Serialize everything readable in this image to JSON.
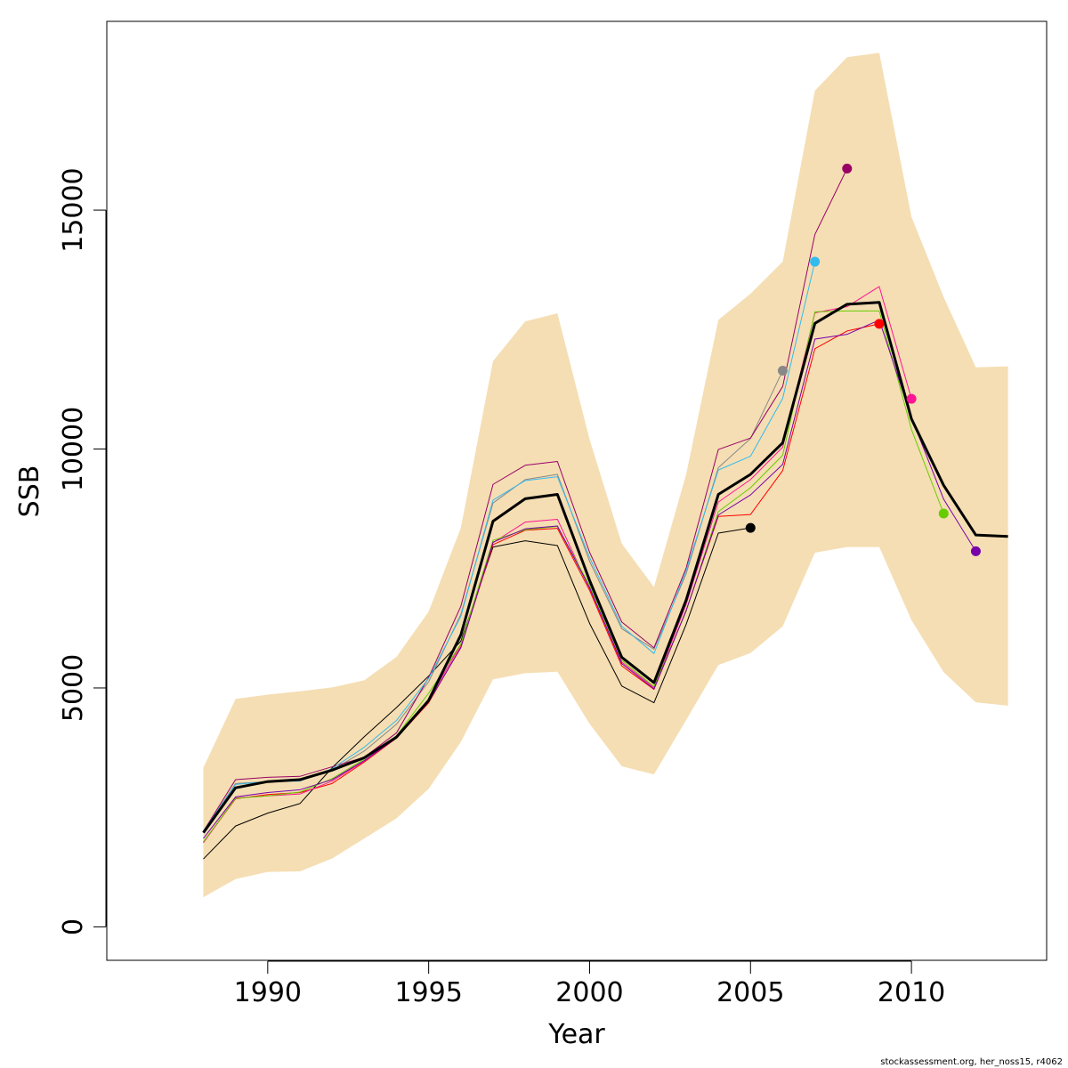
{
  "chart_data": {
    "type": "line",
    "xlabel": "Year",
    "ylabel": "SSB",
    "xlim": [
      1985,
      2014.2
    ],
    "ylim": [
      -700,
      18950
    ],
    "x_ticks": [
      1990,
      1995,
      2000,
      2005,
      2010
    ],
    "x_tick_labels": [
      "1990",
      "1995",
      "2000",
      "2005",
      "2010"
    ],
    "y_ticks": [
      0,
      5000,
      10000,
      15000
    ],
    "y_tick_labels": [
      "0",
      "5000",
      "10000",
      "15000"
    ],
    "grid": false,
    "confidence_band": {
      "color": "#F5DEB3",
      "x": [
        1988,
        1989,
        1990,
        1991,
        1992,
        1993,
        1994,
        1995,
        1996,
        1997,
        1998,
        1999,
        2000,
        2001,
        2002,
        2003,
        2004,
        2005,
        2006,
        2007,
        2008,
        2009,
        2010,
        2011,
        2012,
        2013
      ],
      "lower": [
        620,
        1000,
        1150,
        1160,
        1430,
        1850,
        2270,
        2890,
        3870,
        5180,
        5310,
        5340,
        4250,
        3360,
        3190,
        4330,
        5480,
        5730,
        6290,
        7830,
        7950,
        7950,
        6420,
        5330,
        4700,
        4630
      ],
      "upper": [
        3330,
        4770,
        4860,
        4930,
        5010,
        5160,
        5650,
        6600,
        8350,
        11840,
        12670,
        12840,
        10200,
        8020,
        7110,
        9470,
        12700,
        13250,
        13920,
        17500,
        18200,
        18290,
        14860,
        13180,
        11710,
        11730
      ]
    },
    "series": [
      {
        "color": "#000000",
        "width": 3,
        "x": [
          1988,
          1989,
          1990,
          1991,
          1992,
          1993,
          1994,
          1995,
          1996,
          1997,
          1998,
          1999,
          2000,
          2001,
          2002,
          2003,
          2004,
          2005,
          2006,
          2007,
          2008,
          2009,
          2010,
          2011,
          2012,
          2013
        ],
        "values": [
          1970,
          2910,
          3040,
          3080,
          3280,
          3540,
          3970,
          4740,
          6110,
          8490,
          8960,
          9050,
          7250,
          5640,
          5110,
          6840,
          9050,
          9470,
          10130,
          12630,
          13030,
          13070,
          10630,
          9240,
          8200,
          8170
        ]
      },
      {
        "color": "#000000",
        "width": 1,
        "end_point": true,
        "x": [
          1988,
          1989,
          1990,
          1991,
          1992,
          1993,
          1994,
          1995,
          1996,
          1997,
          1998,
          1999,
          2000,
          2001,
          2002,
          2003,
          2004,
          2005
        ],
        "values": [
          1420,
          2110,
          2380,
          2580,
          3330,
          3980,
          4590,
          5250,
          5980,
          7950,
          8080,
          7980,
          6350,
          5040,
          4690,
          6330,
          8240,
          8350
        ]
      },
      {
        "color": "#888888",
        "width": 1,
        "end_point": true,
        "x": [
          1988,
          1989,
          1990,
          1991,
          1992,
          1993,
          1994,
          1995,
          1996,
          1997,
          1998,
          1999,
          2000,
          2001,
          2002,
          2003,
          2004,
          2005,
          2006
        ],
        "values": [
          1990,
          3000,
          3040,
          3060,
          3280,
          3680,
          4240,
          5130,
          6540,
          8870,
          9360,
          9470,
          7650,
          6240,
          5810,
          7390,
          9610,
          10220,
          11640
        ]
      },
      {
        "color": "#990066",
        "width": 1,
        "end_point": true,
        "x": [
          1988,
          1989,
          1990,
          1991,
          1992,
          1993,
          1994,
          1995,
          1996,
          1997,
          1998,
          1999,
          2000,
          2001,
          2002,
          2003,
          2004,
          2005,
          2006,
          2007,
          2008
        ],
        "values": [
          2000,
          3080,
          3130,
          3150,
          3350,
          3550,
          4060,
          5220,
          6710,
          9260,
          9660,
          9740,
          7840,
          6380,
          5840,
          7510,
          9990,
          10230,
          11310,
          14490,
          15870
        ]
      },
      {
        "color": "#33BBEE",
        "width": 1,
        "end_point": true,
        "x": [
          1988,
          1989,
          1990,
          1991,
          1992,
          1993,
          1994,
          1995,
          1996,
          1997,
          1998,
          1999,
          2000,
          2001,
          2002,
          2003,
          2004,
          2005,
          2006,
          2007
        ],
        "values": [
          2000,
          2980,
          3040,
          3050,
          3310,
          3760,
          4320,
          5200,
          6500,
          8930,
          9340,
          9420,
          7730,
          6290,
          5720,
          7460,
          9560,
          9850,
          11060,
          13920
        ]
      },
      {
        "color": "#FF0000",
        "width": 1,
        "end_point": true,
        "x": [
          1988,
          1989,
          1990,
          1991,
          1992,
          1993,
          1994,
          1995,
          1996,
          1997,
          1998,
          1999,
          2000,
          2001,
          2002,
          2003,
          2004,
          2005,
          2006,
          2007,
          2008,
          2009
        ],
        "values": [
          1770,
          2680,
          2770,
          2810,
          3000,
          3450,
          3950,
          4690,
          5860,
          8000,
          8300,
          8340,
          7040,
          5460,
          4970,
          6620,
          8590,
          8630,
          9550,
          12100,
          12470,
          12620
        ]
      },
      {
        "color": "#FF1493",
        "width": 1,
        "end_point": true,
        "x": [
          1988,
          1989,
          1990,
          1991,
          1992,
          1993,
          1994,
          1995,
          1996,
          1997,
          1998,
          1999,
          2000,
          2001,
          2002,
          2003,
          2004,
          2005,
          2006,
          2007,
          2008,
          2009,
          2010
        ],
        "values": [
          1760,
          2700,
          2740,
          2780,
          3050,
          3470,
          3990,
          4750,
          5910,
          8040,
          8470,
          8530,
          7080,
          5540,
          5010,
          6750,
          8890,
          9360,
          10040,
          12850,
          12980,
          13400,
          11050
        ]
      },
      {
        "color": "#66CC00",
        "width": 1,
        "end_point": true,
        "x": [
          1988,
          1989,
          1990,
          1991,
          1992,
          1993,
          1994,
          1995,
          1996,
          1997,
          1998,
          1999,
          2000,
          2001,
          2002,
          2003,
          2004,
          2005,
          2006,
          2007,
          2008,
          2009,
          2010,
          2011
        ],
        "values": [
          1780,
          2690,
          2740,
          2820,
          3100,
          3510,
          4000,
          4890,
          5920,
          8090,
          8310,
          8380,
          7150,
          5580,
          5030,
          6600,
          8690,
          9190,
          9870,
          12870,
          12890,
          12890,
          10410,
          8650
        ]
      },
      {
        "color": "#7700AA",
        "width": 1,
        "end_point": true,
        "x": [
          1988,
          1989,
          1990,
          1991,
          1992,
          1993,
          1994,
          1995,
          1996,
          1997,
          1998,
          1999,
          2000,
          2001,
          2002,
          2003,
          2004,
          2005,
          2006,
          2007,
          2008,
          2009,
          2010,
          2011,
          2012
        ],
        "values": [
          1850,
          2720,
          2810,
          2870,
          3080,
          3480,
          3950,
          4710,
          5840,
          8050,
          8330,
          8390,
          7100,
          5510,
          4980,
          6620,
          8620,
          9040,
          9680,
          12300,
          12400,
          12700,
          10660,
          8950,
          7860
        ]
      }
    ]
  },
  "credit": "stockassessment.org, her_noss15, r4062"
}
